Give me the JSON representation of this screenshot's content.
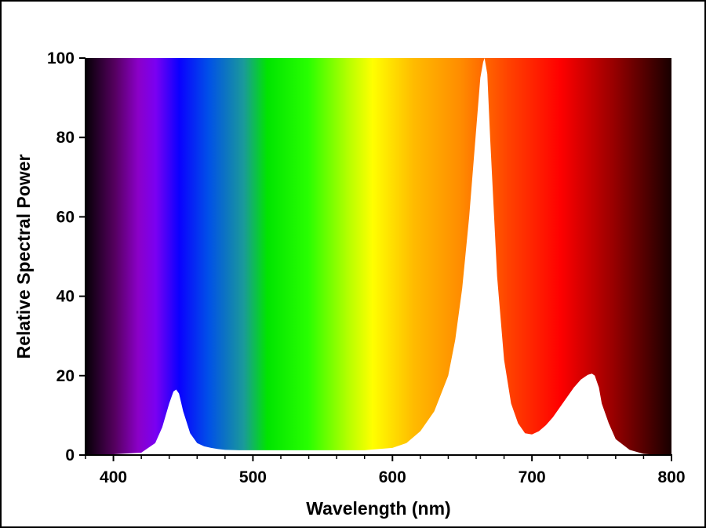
{
  "chart_data": {
    "type": "area",
    "title": "",
    "xlabel": "Wavelength (nm)",
    "ylabel": "Relative Spectral Power",
    "xlim": [
      380,
      800
    ],
    "ylim": [
      0,
      100
    ],
    "xticks": [
      400,
      500,
      600,
      700,
      800
    ],
    "yticks": [
      0,
      20,
      40,
      60,
      80,
      100
    ],
    "background": "visible spectrum color gradient",
    "fill_under_curve": "#ffffff",
    "series": [
      {
        "x": [
          380,
          400,
          420,
          430,
          435,
          440,
          443,
          445,
          447,
          450,
          455,
          460,
          465,
          470,
          475,
          480,
          490,
          500,
          520,
          540,
          560,
          580,
          600,
          610,
          620,
          630,
          640,
          645,
          650,
          655,
          660,
          663,
          665,
          666,
          668,
          670,
          675,
          680,
          685,
          690,
          695,
          700,
          705,
          710,
          715,
          720,
          725,
          730,
          735,
          740,
          743,
          745,
          748,
          750,
          755,
          760,
          770,
          780,
          790,
          800
        ],
        "values": [
          0,
          0.2,
          0.6,
          3,
          7,
          13,
          16,
          16.5,
          15.5,
          11,
          5.5,
          3,
          2.2,
          1.8,
          1.5,
          1.3,
          1.2,
          1.2,
          1.2,
          1.2,
          1.2,
          1.2,
          1.8,
          3,
          6,
          11,
          20,
          29,
          42,
          60,
          82,
          95,
          99,
          100,
          96,
          80,
          45,
          24,
          13,
          8,
          5.5,
          5.2,
          6,
          7.5,
          9.5,
          12,
          14.5,
          17,
          19,
          20.2,
          20.5,
          20,
          17,
          13,
          8,
          4,
          1.3,
          0.3,
          0.05,
          0
        ]
      }
    ]
  }
}
